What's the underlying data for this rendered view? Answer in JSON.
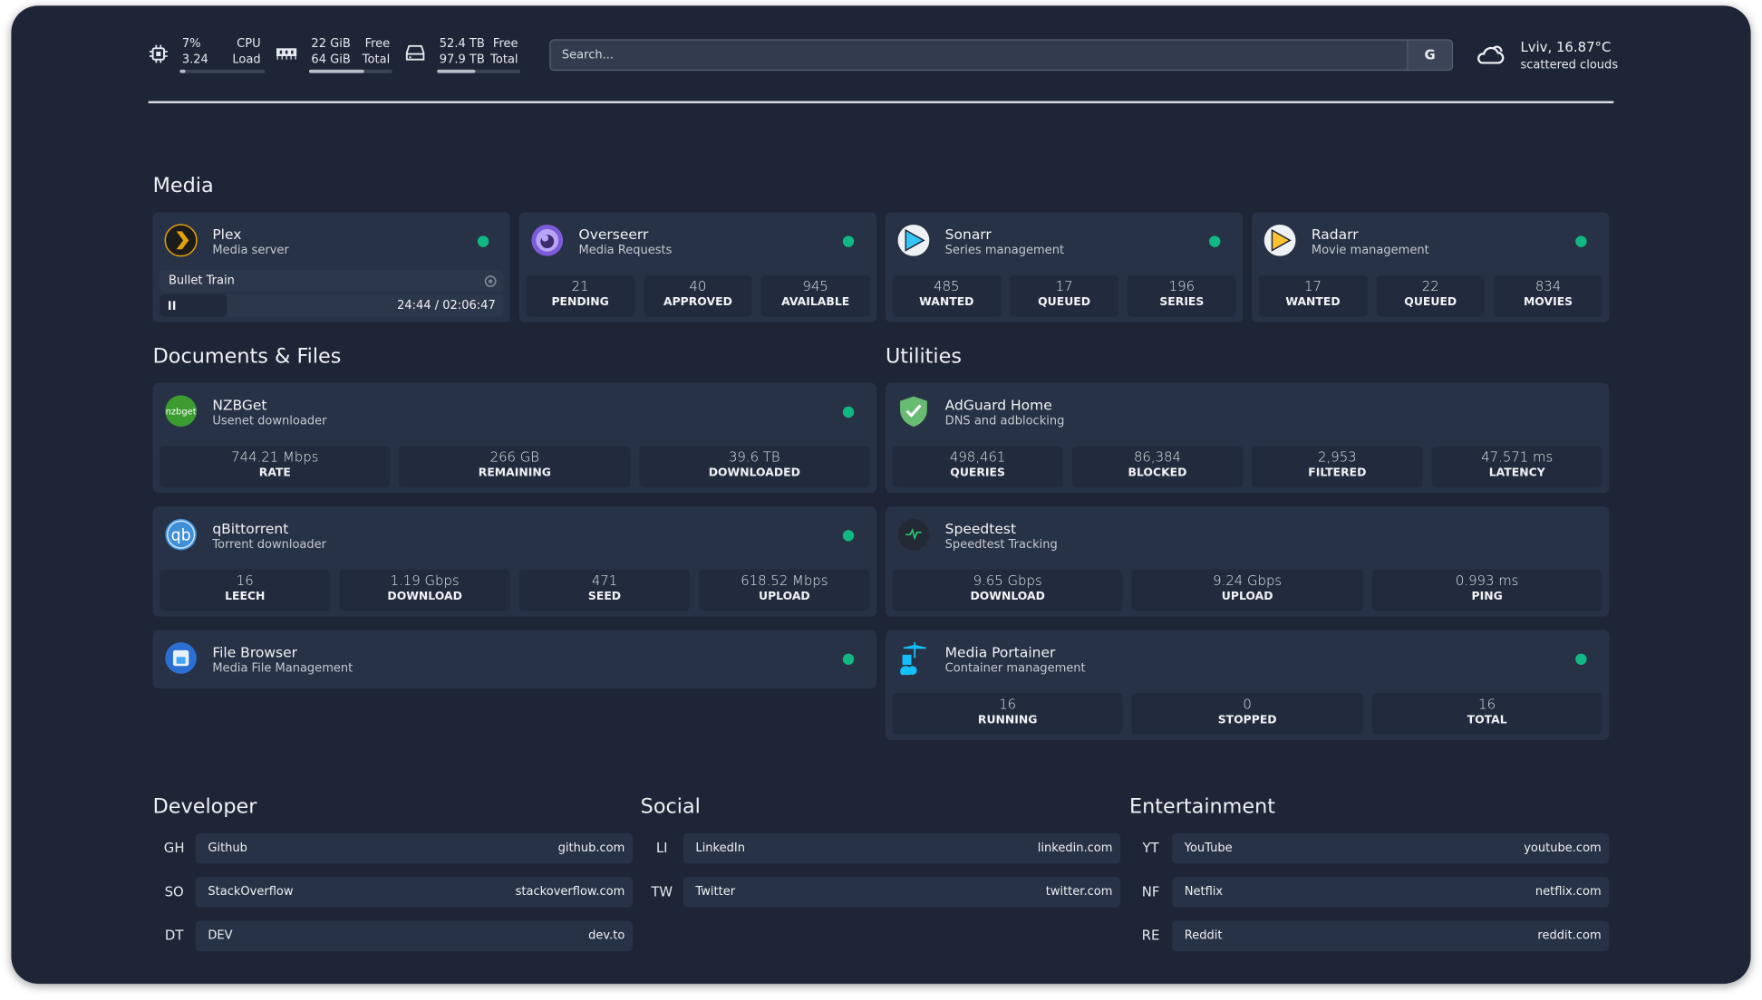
{
  "header": {
    "cpu": {
      "icon": "cpu-icon",
      "percent": "7%",
      "load": "3.24",
      "label1": "CPU",
      "label2": "Load",
      "usage": 0.07
    },
    "memory": {
      "icon": "memory-icon",
      "free": "22 GiB",
      "total": "64 GiB",
      "label1": "Free",
      "label2": "Total",
      "usage": 0.66
    },
    "disk": {
      "icon": "disk-icon",
      "free": "52.4 TB",
      "total": "97.9 TB",
      "label1": "Free",
      "label2": "Total",
      "usage": 0.46
    },
    "search": {
      "placeholder": "Search...",
      "value": "",
      "button": "G"
    },
    "weather": {
      "icon": "cloud-icon",
      "location": "Lviv, 16.87°C",
      "condition": "scattered clouds"
    }
  },
  "colors": {
    "status_up": "#10b981",
    "background": "#1e2537",
    "card": "#283246"
  },
  "media": {
    "heading": "Media",
    "plex": {
      "title": "Plex",
      "subtitle": "Media server",
      "icon": "plex-icon",
      "now_playing": "Bullet Train",
      "time": "24:44 / 02:06:47",
      "progress": 0.195
    },
    "services": [
      {
        "key": "overseerr",
        "title": "Overseerr",
        "subtitle": "Media Requests",
        "icon": "overseerr-icon",
        "stats": [
          {
            "v": "21",
            "l": "PENDING"
          },
          {
            "v": "40",
            "l": "APPROVED"
          },
          {
            "v": "945",
            "l": "AVAILABLE"
          }
        ]
      },
      {
        "key": "sonarr",
        "title": "Sonarr",
        "subtitle": "Series management",
        "icon": "sonarr-icon",
        "stats": [
          {
            "v": "485",
            "l": "WANTED"
          },
          {
            "v": "17",
            "l": "QUEUED"
          },
          {
            "v": "196",
            "l": "SERIES"
          }
        ]
      },
      {
        "key": "radarr",
        "title": "Radarr",
        "subtitle": "Movie management",
        "icon": "radarr-icon",
        "stats": [
          {
            "v": "17",
            "l": "WANTED"
          },
          {
            "v": "22",
            "l": "QUEUED"
          },
          {
            "v": "834",
            "l": "MOVIES"
          }
        ]
      }
    ]
  },
  "documents": {
    "heading": "Documents & Files",
    "services": [
      {
        "key": "nzbget",
        "title": "NZBGet",
        "subtitle": "Usenet downloader",
        "icon": "nzbget-icon",
        "stats": [
          {
            "v": "744.21 Mbps",
            "l": "RATE"
          },
          {
            "v": "266 GB",
            "l": "REMAINING"
          },
          {
            "v": "39.6 TB",
            "l": "DOWNLOADED"
          }
        ]
      },
      {
        "key": "qbittorrent",
        "title": "qBittorrent",
        "subtitle": "Torrent downloader",
        "icon": "qbittorrent-icon",
        "stats": [
          {
            "v": "16",
            "l": "LEECH"
          },
          {
            "v": "1.19 Gbps",
            "l": "DOWNLOAD"
          },
          {
            "v": "471",
            "l": "SEED"
          },
          {
            "v": "618.52 Mbps",
            "l": "UPLOAD"
          }
        ]
      },
      {
        "key": "filebrowser",
        "title": "File Browser",
        "subtitle": "Media File Management",
        "icon": "file-browser-icon",
        "stats": []
      }
    ]
  },
  "utilities": {
    "heading": "Utilities",
    "services": [
      {
        "key": "adguard",
        "title": "AdGuard Home",
        "subtitle": "DNS and adblocking",
        "icon": "adguard-shield-icon",
        "nodot": true,
        "stats": [
          {
            "v": "498,461",
            "l": "QUERIES"
          },
          {
            "v": "86,384",
            "l": "BLOCKED"
          },
          {
            "v": "2,953",
            "l": "FILTERED"
          },
          {
            "v": "47.571 ms",
            "l": "LATENCY"
          }
        ]
      },
      {
        "key": "speedtest",
        "title": "Speedtest",
        "subtitle": "Speedtest Tracking",
        "icon": "speedtest-icon",
        "nodot": true,
        "stats": [
          {
            "v": "9.65 Gbps",
            "l": "DOWNLOAD"
          },
          {
            "v": "9.24 Gbps",
            "l": "UPLOAD"
          },
          {
            "v": "0.993 ms",
            "l": "PING"
          }
        ]
      },
      {
        "key": "portainer",
        "title": "Media Portainer",
        "subtitle": "Container management",
        "icon": "portainer-icon",
        "stats": [
          {
            "v": "16",
            "l": "RUNNING"
          },
          {
            "v": "0",
            "l": "STOPPED"
          },
          {
            "v": "16",
            "l": "TOTAL"
          }
        ]
      }
    ]
  },
  "bookmarks": [
    {
      "heading": "Developer",
      "items": [
        {
          "abbr": "GH",
          "name": "Github",
          "url": "github.com"
        },
        {
          "abbr": "SO",
          "name": "StackOverflow",
          "url": "stackoverflow.com"
        },
        {
          "abbr": "DT",
          "name": "DEV",
          "url": "dev.to"
        }
      ]
    },
    {
      "heading": "Social",
      "items": [
        {
          "abbr": "LI",
          "name": "LinkedIn",
          "url": "linkedin.com"
        },
        {
          "abbr": "TW",
          "name": "Twitter",
          "url": "twitter.com"
        }
      ]
    },
    {
      "heading": "Entertainment",
      "items": [
        {
          "abbr": "YT",
          "name": "YouTube",
          "url": "youtube.com"
        },
        {
          "abbr": "NF",
          "name": "Netflix",
          "url": "netflix.com"
        },
        {
          "abbr": "RE",
          "name": "Reddit",
          "url": "reddit.com"
        }
      ]
    }
  ]
}
